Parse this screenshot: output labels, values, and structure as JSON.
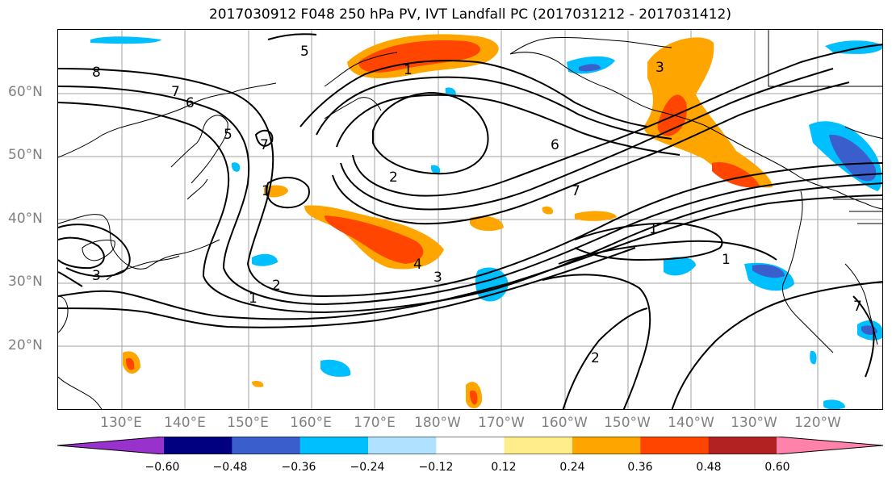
{
  "title": "2017030912 F048 250 hPa PV, IVT Landfall PC (2017031212 - 2017031412)",
  "lat_labels": [
    "60°N",
    "50°N",
    "40°N",
    "30°N",
    "20°N"
  ],
  "lon_labels": [
    "130°E",
    "140°E",
    "150°E",
    "160°E",
    "170°E",
    "180°W",
    "170°W",
    "160°W",
    "150°W",
    "140°W",
    "130°W",
    "120°W"
  ],
  "colorbar": {
    "ticks": [
      "−0.60",
      "−0.48",
      "−0.36",
      "−0.24",
      "−0.12",
      "0.12",
      "0.24",
      "0.36",
      "0.48",
      "0.60"
    ],
    "colors": [
      "#9932cc",
      "#000080",
      "#3a5fcd",
      "#00bfff",
      "#b0e2ff",
      "#ffffff",
      "#ffec8b",
      "#ffa500",
      "#ff4500",
      "#b22222",
      "#ff82ab"
    ]
  },
  "contour_labels": [
    "8",
    "5",
    "7",
    "6",
    "5",
    "7",
    "2",
    "1",
    "3",
    "6",
    "7",
    "1",
    "1",
    "2",
    "3",
    "4",
    "3",
    "1",
    "2",
    "1",
    "7"
  ],
  "colors": {
    "land": "#000000",
    "grid": "#a0a0a0",
    "contour": "#000000"
  }
}
